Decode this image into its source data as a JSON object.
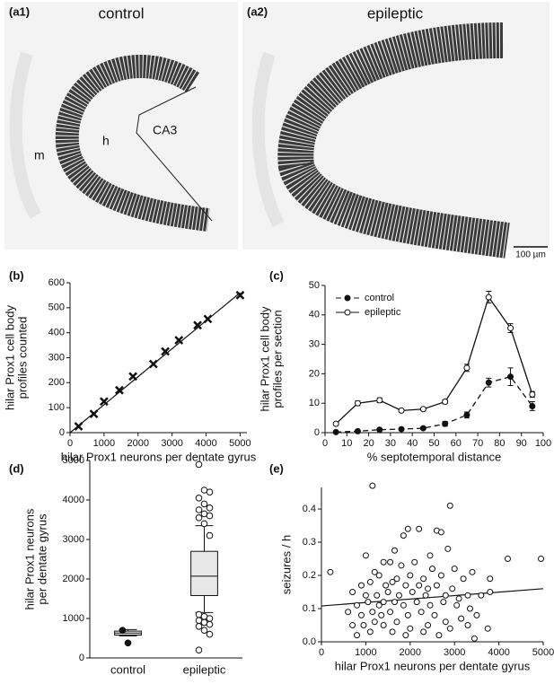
{
  "images": [
    {
      "label": "(a1)",
      "title": "control",
      "annotations": [
        "m",
        "h",
        "CA3"
      ]
    },
    {
      "label": "(a2)",
      "title": "epileptic",
      "scale_bar": "100 µm"
    }
  ],
  "chart_data": [
    {
      "type": "scatter",
      "label": "(b)",
      "xlabel": "hilar Prox1 neurons per dentate gyrus",
      "ylabel": [
        "hilar Prox1 cell body",
        "profiles counted"
      ],
      "xlim": [
        0,
        5200
      ],
      "xticks": [
        0,
        1000,
        2000,
        3000,
        4000,
        5000
      ],
      "ylim": [
        0,
        600
      ],
      "yticks": [
        0,
        100,
        200,
        300,
        400,
        500,
        600
      ],
      "series": [
        {
          "color": "#111111",
          "marker": "x",
          "x": [
            250,
            700,
            1000,
            1450,
            1850,
            2450,
            2800,
            3200,
            3750,
            4050,
            5000
          ],
          "values": [
            25,
            75,
            125,
            170,
            225,
            275,
            325,
            370,
            430,
            455,
            550
          ]
        }
      ],
      "fit": {
        "x": [
          0,
          5000
        ],
        "y": [
          0,
          560
        ]
      }
    },
    {
      "type": "line",
      "label": "(c)",
      "xlabel": "% septotemporal distance",
      "ylabel": [
        "hilar Prox1 cell body",
        "profiles per section"
      ],
      "xlim": [
        0,
        100
      ],
      "xticks": [
        0,
        10,
        20,
        30,
        40,
        50,
        60,
        70,
        80,
        90,
        100
      ],
      "ylim": [
        0,
        50
      ],
      "yticks": [
        0,
        10,
        20,
        30,
        40,
        50
      ],
      "x": [
        5,
        15,
        25,
        35,
        45,
        55,
        65,
        75,
        85,
        95
      ],
      "legend": "upper left",
      "series": [
        {
          "name": "control",
          "color": "#111111",
          "marker": "filled",
          "dash": true,
          "values": [
            0.2,
            0.5,
            1,
            1.2,
            1.5,
            3,
            6,
            17,
            19,
            9
          ],
          "errors": [
            0.2,
            0.2,
            0.3,
            0.3,
            0.4,
            0.8,
            1,
            1.5,
            3,
            1.5
          ]
        },
        {
          "name": "epileptic",
          "color": "#111111",
          "marker": "open",
          "dash": false,
          "values": [
            3,
            10,
            11,
            7.5,
            8,
            10.5,
            22,
            46,
            35.5,
            13
          ],
          "errors": [
            0.5,
            0.8,
            0.8,
            0.5,
            0.5,
            0.7,
            1.2,
            2,
            1.5,
            1
          ]
        }
      ]
    },
    {
      "type": "box",
      "label": "(d)",
      "ylabel": [
        "hilar Prox1 neurons",
        "per dentate gyrus"
      ],
      "ylim": [
        0,
        5000
      ],
      "yticks": [
        0,
        1000,
        2000,
        3000,
        4000,
        5000
      ],
      "categories": [
        "control",
        "epileptic"
      ],
      "boxes": [
        {
          "whisker_low": 560,
          "q1": 580,
          "median": 630,
          "q3": 680,
          "whisker_high": 720,
          "outliers": [
            700,
            380
          ],
          "fill": "#f0f0f0"
        },
        {
          "whisker_low": 1150,
          "q1": 1580,
          "median": 2070,
          "q3": 2700,
          "whisker_high": 3350,
          "outliers": [
            4900,
            4250,
            4200,
            4050,
            3900,
            3800,
            3750,
            3650,
            3600,
            3550,
            3400,
            3100,
            1100,
            1050,
            1000,
            950,
            900,
            850,
            800,
            700,
            600,
            200
          ],
          "fill": "#e8e8e8"
        }
      ]
    },
    {
      "type": "scatter",
      "label": "(e)",
      "xlabel": "hilar Prox1 neurons per dentate gyrus",
      "ylabel": [
        "seizures / h"
      ],
      "xlim": [
        0,
        5000
      ],
      "xticks": [
        0,
        1000,
        2000,
        3000,
        4000,
        5000
      ],
      "ylim": [
        0,
        0.465
      ],
      "yticks": [
        {
          "value": 0,
          "label": "0.0"
        },
        0.1,
        0.2,
        0.3,
        0.4
      ],
      "series": [
        {
          "color": "#111111",
          "marker": "o",
          "x": [
            200,
            1150,
            2900,
            2200,
            2600,
            2700,
            1850,
            1950,
            1650,
            1000,
            2850,
            2450,
            4200,
            4950,
            1400,
            1550,
            1800,
            2100,
            2500,
            3000,
            3400,
            1200,
            1300,
            1700,
            2000,
            2300,
            2700,
            3200,
            3800,
            900,
            1100,
            1450,
            1600,
            1900,
            2200,
            2400,
            2600,
            2950,
            3300,
            700,
            1000,
            1250,
            1500,
            1750,
            2050,
            2350,
            2800,
            3100,
            3600,
            3800,
            800,
            1050,
            1300,
            1400,
            1650,
            1850,
            2150,
            2450,
            2750,
            3050,
            3350,
            600,
            900,
            1150,
            1350,
            1550,
            1950,
            2250,
            2550,
            3150,
            3500,
            700,
            950,
            1200,
            1400,
            1700,
            2000,
            2400,
            2800,
            3300,
            3750,
            800,
            1100,
            1600,
            1900,
            2300,
            2650,
            2900,
            3450
          ],
          "values": [
            0.21,
            0.47,
            0.41,
            0.34,
            0.335,
            0.33,
            0.32,
            0.34,
            0.275,
            0.26,
            0.28,
            0.26,
            0.25,
            0.25,
            0.24,
            0.24,
            0.23,
            0.24,
            0.22,
            0.22,
            0.21,
            0.21,
            0.2,
            0.19,
            0.2,
            0.19,
            0.2,
            0.19,
            0.19,
            0.17,
            0.18,
            0.17,
            0.18,
            0.17,
            0.17,
            0.16,
            0.17,
            0.16,
            0.14,
            0.15,
            0.14,
            0.14,
            0.15,
            0.14,
            0.15,
            0.14,
            0.14,
            0.13,
            0.14,
            0.15,
            0.11,
            0.12,
            0.11,
            0.12,
            0.12,
            0.11,
            0.12,
            0.11,
            0.12,
            0.11,
            0.1,
            0.09,
            0.08,
            0.09,
            0.08,
            0.09,
            0.08,
            0.09,
            0.08,
            0.07,
            0.08,
            0.05,
            0.05,
            0.06,
            0.05,
            0.06,
            0.04,
            0.05,
            0.06,
            0.05,
            0.04,
            0.02,
            0.03,
            0.03,
            0.02,
            0.03,
            0.02,
            0.04,
            0.01
          ]
        }
      ],
      "fit": {
        "x": [
          0,
          5000
        ],
        "y": [
          0.108,
          0.16
        ]
      }
    }
  ]
}
